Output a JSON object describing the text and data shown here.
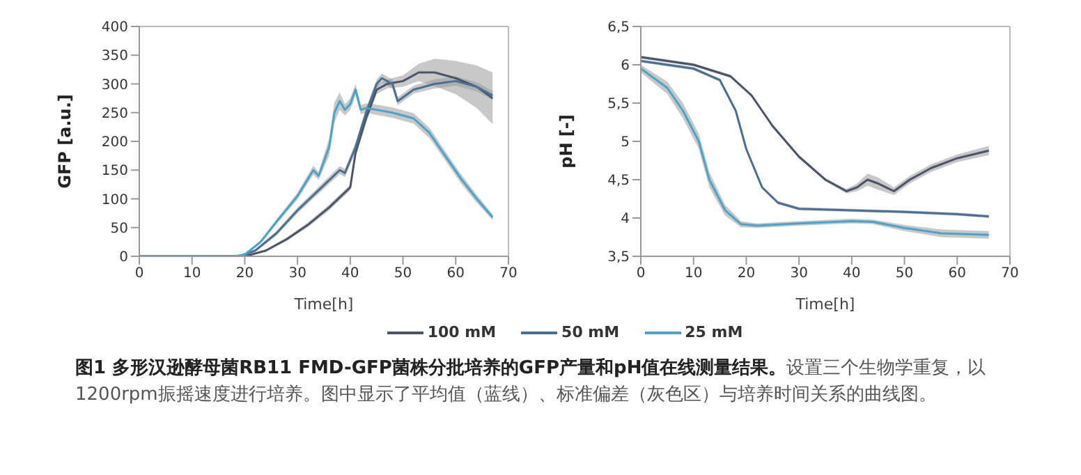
{
  "chart_data": [
    {
      "type": "line",
      "xlabel": "Time[h]",
      "ylabel": "GFP  [a.u.]",
      "xlim": [
        0,
        70
      ],
      "xticks": [
        0,
        10,
        20,
        30,
        40,
        50,
        60,
        70
      ],
      "ylim": [
        0,
        400
      ],
      "yticks": [
        0,
        50,
        100,
        150,
        200,
        250,
        300,
        350,
        400
      ],
      "legend": "bottom",
      "marker": "none",
      "line_style": "solid",
      "series": [
        {
          "name": "100 mM",
          "color": "#4a5468",
          "x": [
            0,
            20,
            24,
            28,
            32,
            36,
            40,
            41,
            43,
            45,
            47,
            50,
            53,
            56,
            60,
            64,
            67
          ],
          "values": [
            0,
            0,
            10,
            30,
            55,
            85,
            120,
            180,
            240,
            290,
            300,
            305,
            320,
            320,
            310,
            295,
            275
          ],
          "lower": [
            0,
            0,
            8,
            27,
            51,
            80,
            115,
            172,
            232,
            282,
            292,
            295,
            305,
            296,
            282,
            258,
            230
          ],
          "upper": [
            0,
            0,
            12,
            33,
            59,
            90,
            125,
            188,
            248,
            298,
            308,
            315,
            335,
            344,
            340,
            332,
            320
          ]
        },
        {
          "name": "50 mM",
          "color": "#4a6f95",
          "x": [
            0,
            19,
            22,
            26,
            30,
            34,
            38,
            39,
            41,
            43,
            45,
            46,
            48,
            49,
            52,
            56,
            60,
            64,
            67
          ],
          "values": [
            0,
            0,
            10,
            40,
            80,
            115,
            150,
            145,
            190,
            250,
            300,
            310,
            300,
            270,
            290,
            300,
            305,
            295,
            280
          ],
          "lower": [
            0,
            0,
            8,
            36,
            75,
            109,
            143,
            138,
            182,
            242,
            292,
            302,
            292,
            263,
            283,
            292,
            297,
            287,
            272
          ],
          "upper": [
            0,
            0,
            12,
            44,
            85,
            121,
            157,
            152,
            198,
            258,
            308,
            318,
            308,
            277,
            297,
            308,
            313,
            303,
            288
          ]
        },
        {
          "name": "25 mM",
          "color": "#4aa3c8",
          "x": [
            0,
            18,
            20,
            23,
            26,
            30,
            33,
            34,
            36,
            37,
            38,
            39,
            40,
            41,
            42,
            43,
            45,
            48,
            52,
            55,
            58,
            61,
            64,
            67
          ],
          "values": [
            0,
            0,
            3,
            25,
            60,
            105,
            150,
            140,
            190,
            250,
            270,
            255,
            265,
            290,
            255,
            258,
            255,
            250,
            240,
            215,
            175,
            135,
            100,
            68
          ],
          "lower": [
            0,
            0,
            2,
            22,
            56,
            99,
            142,
            133,
            175,
            232,
            255,
            245,
            255,
            280,
            247,
            250,
            246,
            241,
            231,
            206,
            167,
            127,
            93,
            63
          ],
          "upper": [
            0,
            0,
            4,
            28,
            64,
            111,
            158,
            147,
            205,
            268,
            285,
            265,
            275,
            300,
            263,
            266,
            264,
            259,
            249,
            224,
            183,
            143,
            107,
            73
          ]
        }
      ],
      "annotations": [
        "图1 多形汉逊酵母菌RB11  FMD-GFP菌株分批培养的GFP产量和pH值在线测量结果。",
        "设置三个生物学重复，以1200rpm振摇速度进行培养。图中显示了平均值（蓝线）、标准偏差（灰色区）与培养时间关系的曲线图。"
      ]
    },
    {
      "type": "line",
      "xlabel": "Time[h]",
      "ylabel": "pH  [-]",
      "xlim": [
        0,
        70
      ],
      "xticks": [
        0,
        10,
        20,
        30,
        40,
        50,
        60,
        70
      ],
      "ylim": [
        3.5,
        6.5
      ],
      "yticks": [
        {
          "value": 3.5,
          "label": "3,5"
        },
        4,
        {
          "value": 4.5,
          "label": "4,5"
        },
        5,
        {
          "value": 5.5,
          "label": "5,5"
        },
        6,
        {
          "value": 6.5,
          "label": "6,5"
        }
      ],
      "marker": "none",
      "line_style": "solid",
      "series": [
        {
          "color": "#4a5468",
          "x": [
            0,
            10,
            17,
            21,
            25,
            30,
            35,
            39,
            41,
            43,
            45,
            48,
            51,
            55,
            60,
            66
          ],
          "values": [
            6.1,
            6.0,
            5.85,
            5.6,
            5.2,
            4.8,
            4.5,
            4.35,
            4.4,
            4.5,
            4.45,
            4.35,
            4.5,
            4.65,
            4.78,
            4.88
          ],
          "lower": [
            6.08,
            5.98,
            5.83,
            5.58,
            5.18,
            4.78,
            4.48,
            4.32,
            4.35,
            4.42,
            4.37,
            4.3,
            4.45,
            4.6,
            4.73,
            4.82
          ],
          "upper": [
            6.12,
            6.02,
            5.87,
            5.62,
            5.22,
            4.82,
            4.52,
            4.38,
            4.45,
            4.58,
            4.53,
            4.4,
            4.55,
            4.7,
            4.83,
            4.94
          ]
        },
        {
          "color": "#4a6f95",
          "x": [
            0,
            10,
            15,
            18,
            20,
            23,
            26,
            30,
            40,
            50,
            60,
            66
          ],
          "values": [
            6.05,
            5.95,
            5.8,
            5.4,
            4.9,
            4.4,
            4.2,
            4.12,
            4.1,
            4.08,
            4.05,
            4.02
          ],
          "lower": [
            6.03,
            5.93,
            5.78,
            5.38,
            4.88,
            4.38,
            4.18,
            4.1,
            4.08,
            4.06,
            4.03,
            4.0
          ],
          "upper": [
            6.07,
            5.97,
            5.82,
            5.42,
            4.92,
            4.42,
            4.22,
            4.14,
            4.12,
            4.1,
            4.07,
            4.04
          ]
        },
        {
          "color": "#4aa3c8",
          "x": [
            0,
            5,
            8,
            11,
            13,
            16,
            19,
            22,
            30,
            40,
            44,
            50,
            57,
            66
          ],
          "values": [
            5.95,
            5.7,
            5.4,
            5.0,
            4.5,
            4.1,
            3.92,
            3.9,
            3.93,
            3.96,
            3.95,
            3.87,
            3.8,
            3.78
          ],
          "lower": [
            5.9,
            5.62,
            5.3,
            4.9,
            4.4,
            4.03,
            3.88,
            3.87,
            3.9,
            3.93,
            3.92,
            3.83,
            3.75,
            3.73
          ],
          "upper": [
            6.0,
            5.78,
            5.5,
            5.1,
            4.6,
            4.17,
            3.96,
            3.93,
            3.96,
            3.99,
            3.98,
            3.91,
            3.85,
            3.83
          ]
        }
      ]
    }
  ]
}
